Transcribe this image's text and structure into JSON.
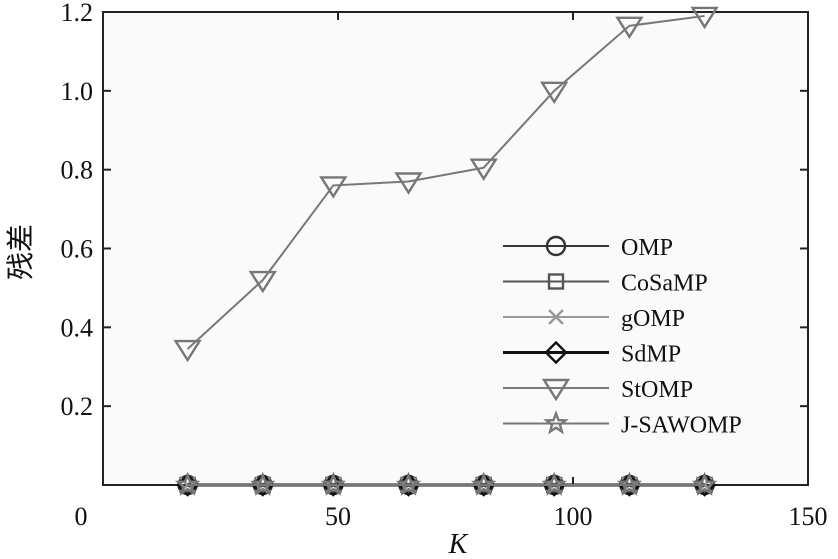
{
  "chart_data": {
    "type": "line",
    "xlabel": "K",
    "ylabel": "残差",
    "xlim": [
      0,
      150
    ],
    "ylim": [
      0,
      1.2
    ],
    "xticks": [
      "0",
      "50",
      "100",
      "150"
    ],
    "yticks": [
      "0.2",
      "0.4",
      "0.6",
      "0.8",
      "1.0",
      "1.2"
    ],
    "grid": false,
    "legend_position": "right",
    "x": [
      18,
      34,
      49,
      65,
      81,
      96,
      112,
      128
    ],
    "series": [
      {
        "name": "OMP",
        "marker": "circle",
        "color": "#333333",
        "values": [
          0,
          0,
          0,
          0,
          0,
          0,
          0,
          0
        ]
      },
      {
        "name": "CoSaMP",
        "marker": "square",
        "color": "#555555",
        "values": [
          0,
          0,
          0,
          0,
          0,
          0,
          0,
          0
        ]
      },
      {
        "name": "gOMP",
        "marker": "x",
        "color": "#999999",
        "values": [
          0,
          0,
          0,
          0,
          0,
          0,
          0,
          0
        ]
      },
      {
        "name": "SdMP",
        "marker": "diamond",
        "color": "#111111",
        "values": [
          0,
          0,
          0,
          0,
          0,
          0,
          0,
          0
        ]
      },
      {
        "name": "StOMP",
        "marker": "triangle-down",
        "color": "#777777",
        "values": [
          0.345,
          0.52,
          0.76,
          0.77,
          0.805,
          1.0,
          1.165,
          1.19
        ]
      },
      {
        "name": "J-SAWOMP",
        "marker": "star",
        "color": "#777777",
        "values": [
          0,
          0,
          0,
          0,
          0,
          0,
          0,
          0
        ]
      }
    ]
  }
}
